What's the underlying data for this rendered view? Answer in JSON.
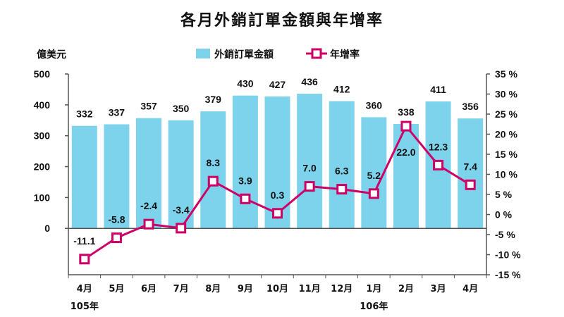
{
  "chart_data": {
    "type": "bar+line",
    "title": "各月外銷訂單金額與年增率",
    "left_axis_unit": "億美元",
    "categories": [
      "4月",
      "5月",
      "6月",
      "7月",
      "8月",
      "9月",
      "10月",
      "11月",
      "12月",
      "1月",
      "2月",
      "3月",
      "4月"
    ],
    "year_labels": [
      {
        "category_index": 0,
        "label": "105年"
      },
      {
        "category_index": 9,
        "label": "106年"
      }
    ],
    "series": [
      {
        "name": "外銷訂單金額",
        "type": "bar",
        "axis": "left",
        "color": "#7dd3ec",
        "values": [
          332,
          337,
          357,
          350,
          379,
          430,
          427,
          436,
          412,
          360,
          338,
          411,
          356
        ]
      },
      {
        "name": "年增率",
        "type": "line",
        "axis": "right",
        "color": "#cc0066",
        "values": [
          -11.1,
          -5.8,
          -2.4,
          -3.4,
          8.3,
          3.9,
          0.3,
          7.0,
          6.3,
          5.2,
          22.0,
          12.3,
          7.4
        ],
        "labels": [
          "-11.1",
          "-5.8",
          "-2.4",
          "-3.4",
          "8.3",
          "3.9",
          "0.3",
          "7.0",
          "6.3",
          "5.2",
          "22.0",
          "12.3",
          "7.4"
        ]
      }
    ],
    "left_axis": {
      "ylim": [
        -150,
        500
      ],
      "ticks": [
        0,
        100,
        200,
        300,
        400,
        500
      ]
    },
    "right_axis": {
      "ylim": [
        -15,
        35
      ],
      "ticks": [
        -15,
        -10,
        -5,
        0,
        5,
        10,
        15,
        20,
        25,
        30,
        35
      ],
      "tick_labels": [
        "-15 %",
        "-10 %",
        "-5 %",
        "0 %",
        "5 %",
        "10 %",
        "15 %",
        "20 %",
        "25 %",
        "30 %",
        "35 %"
      ]
    },
    "legend_position": "top"
  }
}
